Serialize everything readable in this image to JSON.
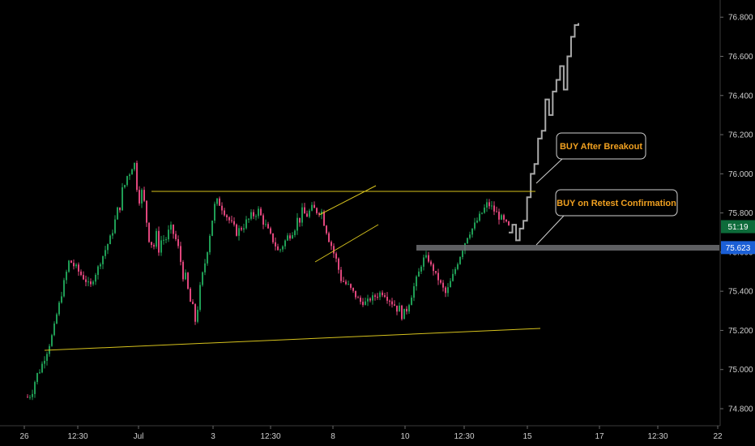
{
  "chart_data": {
    "type": "candlestick",
    "instrument_hint": "",
    "y_axis": {
      "range": [
        74.72,
        76.92
      ],
      "ticks": [
        74.8,
        75.0,
        75.2,
        75.4,
        75.6,
        75.8,
        76.0,
        76.2,
        76.4,
        76.6,
        76.8
      ],
      "tick_labels": [
        "74.800",
        "75.000",
        "75.200",
        "75.400",
        "75.600",
        "75.800",
        "76.000",
        "76.200",
        "76.400",
        "76.600",
        "76.800"
      ]
    },
    "x_axis": {
      "tick_labels": [
        "26",
        "12:30",
        "Jul",
        "3",
        "12:30",
        "8",
        "10",
        "12:30",
        "15",
        "17",
        "12:30",
        "22"
      ]
    },
    "badges": [
      {
        "label": "51:19",
        "value": 75.73,
        "color": "#0d6b3a",
        "text_color": "#ffffff"
      },
      {
        "label": "75.623",
        "value": 75.623,
        "color": "#1b5fd6",
        "text_color": "#ffffff"
      }
    ],
    "price_path": [
      [
        75.0,
        74.72
      ],
      [
        75.1,
        75.1
      ],
      [
        75.5,
        75.62
      ],
      [
        75.4,
        75.45
      ],
      [
        75.65,
        75.72
      ],
      [
        76.27,
        75.9
      ],
      [
        75.82,
        75.45
      ],
      [
        75.8,
        75.6
      ],
      [
        75.35,
        75.14
      ],
      [
        75.9,
        75.85
      ],
      [
        75.75,
        75.65
      ],
      [
        75.88,
        75.75
      ],
      [
        75.62,
        75.58
      ],
      [
        75.88,
        75.68
      ],
      [
        75.9,
        75.75
      ],
      [
        75.55,
        75.38
      ],
      [
        75.35,
        75.32
      ],
      [
        75.45,
        75.35
      ],
      [
        75.35,
        75.2
      ],
      [
        75.6,
        75.58
      ],
      [
        75.42,
        75.35
      ],
      [
        75.65,
        75.7
      ],
      [
        75.9,
        75.8
      ],
      [
        75.77,
        75.68
      ]
    ],
    "projection": [
      75.7,
      75.74,
      75.66,
      75.72,
      75.76,
      75.88,
      76.0,
      76.05,
      76.18,
      76.22,
      76.38,
      76.3,
      76.42,
      76.48,
      76.55,
      76.43,
      76.6,
      76.7,
      76.76,
      76.77
    ],
    "support_line": {
      "from": 75.09,
      "to": 75.21
    },
    "resistance_line": {
      "value": 75.91
    },
    "flag_channel": {
      "upper": [
        75.78,
        75.94
      ],
      "lower": [
        75.56,
        75.74
      ]
    },
    "retest_zone": {
      "value": 75.623
    },
    "annotations": [
      {
        "text": "BUY After Breakout",
        "anchor_value": 75.92
      },
      {
        "text": "BUY on  Retest Confirmation",
        "anchor_value": 75.63
      }
    ]
  }
}
